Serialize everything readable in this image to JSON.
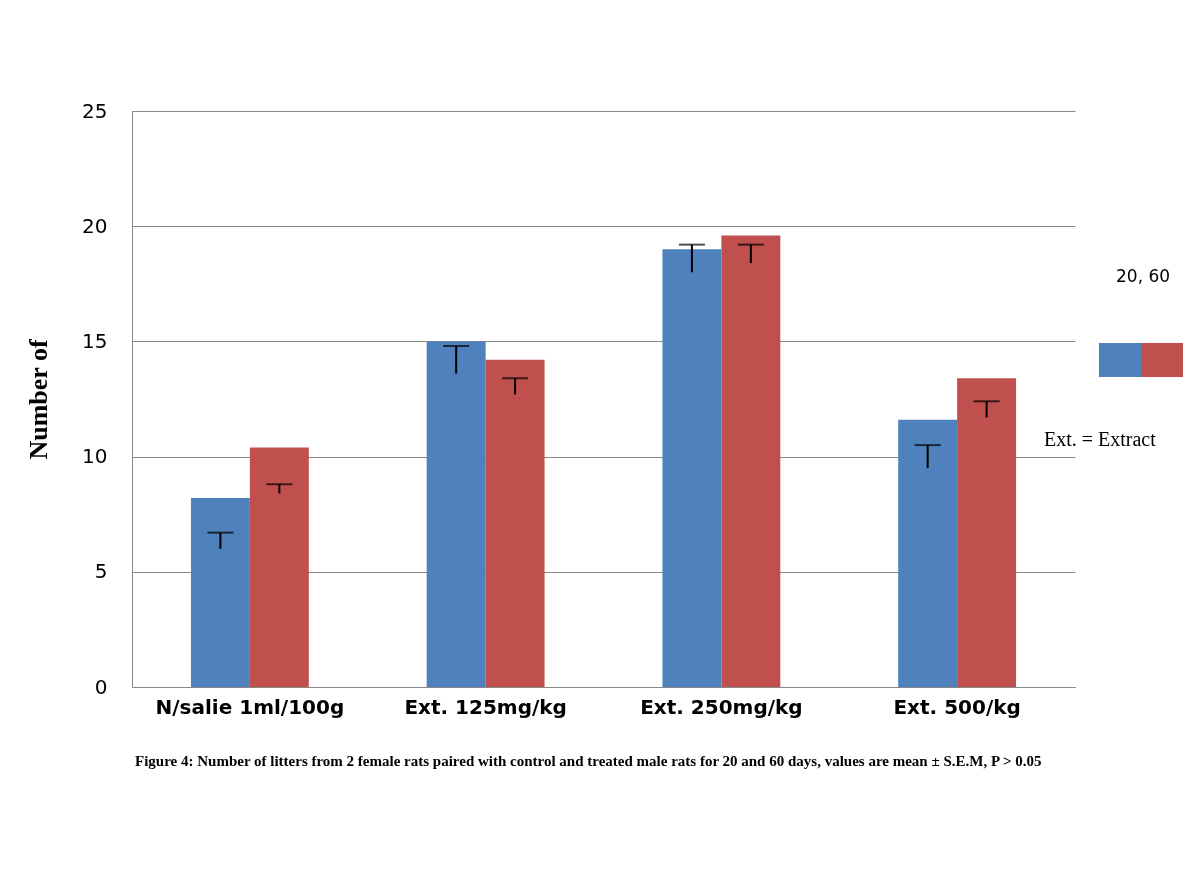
{
  "chart_data": {
    "type": "bar",
    "ylabel": "Number of",
    "legend_title": "20, 60",
    "categories": [
      "N/salie 1ml/100g",
      "Ext. 125mg/kg",
      "Ext. 250mg/kg",
      "Ext. 500/kg"
    ],
    "series": [
      {
        "color": "#4f81bd",
        "values": [
          8.2,
          15.0,
          19.0,
          11.6
        ],
        "errors": [
          [
            6.0,
            6.7
          ],
          [
            13.6,
            14.8
          ],
          [
            18.0,
            19.2
          ],
          [
            9.5,
            10.5
          ]
        ]
      },
      {
        "color": "#c0504d",
        "values": [
          10.4,
          14.2,
          19.6,
          13.4
        ],
        "errors": [
          [
            8.4,
            8.8
          ],
          [
            12.7,
            13.4
          ],
          [
            18.4,
            19.2
          ],
          [
            11.7,
            12.4
          ]
        ]
      }
    ],
    "ylim": [
      0,
      25
    ],
    "yticks": [
      0,
      5,
      10,
      15,
      20,
      25
    ],
    "grid": "y",
    "annotations": [
      "Ext. = Extract",
      "Figure 4: Number of litters from 2 female rats paired with control and treated male rats for 20 and 60 days, values are mean ± S.E.M, P > 0.05"
    ]
  }
}
